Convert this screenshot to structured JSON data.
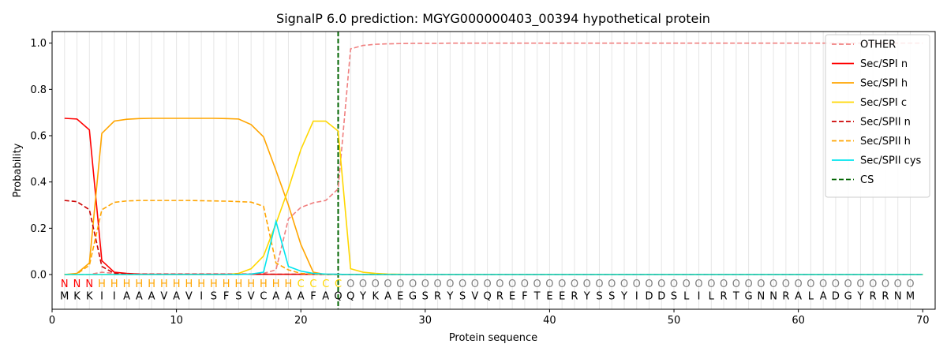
{
  "chart_data": {
    "type": "line",
    "title": "SignalP 6.0 prediction: MGYG000000403_00394 hypothetical protein",
    "xlabel": "Protein sequence",
    "ylabel": "Probability",
    "xlim": [
      0,
      71
    ],
    "ylim": [
      -0.15,
      1.05
    ],
    "xticks": [
      0,
      10,
      20,
      30,
      40,
      50,
      60,
      70
    ],
    "yticks": [
      0.0,
      0.2,
      0.4,
      0.6,
      0.8,
      1.0
    ],
    "ytick_labels": [
      "0.0",
      "0.2",
      "0.4",
      "0.6",
      "0.8",
      "1.0"
    ],
    "grid": "vertical lines at each residue position",
    "legend_position": "top-right",
    "sequence": "MKKIIAAAVAVISFSVCAAAFAQQYKAEGSRYSVQREFTEERYSSYIDDSLILRTGNNRALADGYRRNM",
    "labels": "NNNHHHHHHHHHHHHHHHHCCCCOOOOOOOOOOOOOOOOOOOOOOOOOOOOOOOOOOOOOOOOOOOOOOO",
    "label_colors": {
      "N": "#ff0000",
      "H": "#ffa500",
      "C": "#ffd700",
      "O": "#808080"
    },
    "cleavage_site": 23,
    "series": [
      {
        "name": "OTHER",
        "color": "#f08080",
        "dash": true,
        "values": [
          0.0,
          0.0,
          0.0,
          0.01,
          0.005,
          0.003,
          0.003,
          0.003,
          0.003,
          0.003,
          0.003,
          0.003,
          0.003,
          0.003,
          0.003,
          0.003,
          0.005,
          0.02,
          0.24,
          0.29,
          0.31,
          0.32,
          0.37,
          0.975,
          0.99,
          0.995,
          0.997,
          0.998,
          0.999,
          0.999,
          0.999,
          1.0,
          1.0,
          1.0,
          1.0,
          1.0,
          1.0,
          1.0,
          1.0,
          1.0,
          1.0,
          1.0,
          1.0,
          1.0,
          1.0,
          1.0,
          1.0,
          1.0,
          1.0,
          1.0,
          1.0,
          1.0,
          1.0,
          1.0,
          1.0,
          1.0,
          1.0,
          1.0,
          1.0,
          1.0,
          1.0,
          1.0,
          1.0,
          1.0,
          1.0,
          1.0,
          1.0,
          1.0,
          1.0,
          1.0
        ]
      },
      {
        "name": "Sec/SPI n",
        "color": "#ff0000",
        "dash": false,
        "values": [
          0.675,
          0.672,
          0.625,
          0.06,
          0.01,
          0.005,
          0.002,
          0.001,
          0.001,
          0.001,
          0.001,
          0.001,
          0.001,
          0.001,
          0.001,
          0.001,
          0.001,
          0.001,
          0.001,
          0.001,
          0.001,
          0.001,
          0.001,
          0.0,
          0.0,
          0.0,
          0.0,
          0.0,
          0.0,
          0.0,
          0.0,
          0.0,
          0.0,
          0.0,
          0.0,
          0.0,
          0.0,
          0.0,
          0.0,
          0.0,
          0.0,
          0.0,
          0.0,
          0.0,
          0.0,
          0.0,
          0.0,
          0.0,
          0.0,
          0.0,
          0.0,
          0.0,
          0.0,
          0.0,
          0.0,
          0.0,
          0.0,
          0.0,
          0.0,
          0.0,
          0.0,
          0.0,
          0.0,
          0.0,
          0.0,
          0.0,
          0.0,
          0.0,
          0.0,
          0.0
        ]
      },
      {
        "name": "Sec/SPI h",
        "color": "#ffa500",
        "dash": false,
        "values": [
          0.0,
          0.005,
          0.05,
          0.61,
          0.663,
          0.671,
          0.674,
          0.675,
          0.675,
          0.675,
          0.675,
          0.675,
          0.675,
          0.674,
          0.672,
          0.648,
          0.595,
          0.45,
          0.3,
          0.13,
          0.01,
          0.0,
          0.0,
          0.0,
          0.0,
          0.0,
          0.0,
          0.0,
          0.0,
          0.0,
          0.0,
          0.0,
          0.0,
          0.0,
          0.0,
          0.0,
          0.0,
          0.0,
          0.0,
          0.0,
          0.0,
          0.0,
          0.0,
          0.0,
          0.0,
          0.0,
          0.0,
          0.0,
          0.0,
          0.0,
          0.0,
          0.0,
          0.0,
          0.0,
          0.0,
          0.0,
          0.0,
          0.0,
          0.0,
          0.0,
          0.0,
          0.0,
          0.0,
          0.0,
          0.0,
          0.0,
          0.0,
          0.0,
          0.0,
          0.0
        ]
      },
      {
        "name": "Sec/SPI c",
        "color": "#ffd700",
        "dash": false,
        "values": [
          0.0,
          0.0,
          0.0,
          0.0,
          0.0,
          0.0,
          0.0,
          0.0,
          0.0,
          0.0,
          0.0,
          0.0,
          0.0,
          0.0,
          0.005,
          0.025,
          0.08,
          0.22,
          0.37,
          0.54,
          0.663,
          0.663,
          0.62,
          0.025,
          0.01,
          0.005,
          0.002,
          0.001,
          0.0,
          0.0,
          0.0,
          0.0,
          0.0,
          0.0,
          0.0,
          0.0,
          0.0,
          0.0,
          0.0,
          0.0,
          0.0,
          0.0,
          0.0,
          0.0,
          0.0,
          0.0,
          0.0,
          0.0,
          0.0,
          0.0,
          0.0,
          0.0,
          0.0,
          0.0,
          0.0,
          0.0,
          0.0,
          0.0,
          0.0,
          0.0,
          0.0,
          0.0,
          0.0,
          0.0,
          0.0,
          0.0,
          0.0,
          0.0,
          0.0,
          0.0
        ]
      },
      {
        "name": "Sec/SPII n",
        "color": "#cc0000",
        "dash": true,
        "values": [
          0.32,
          0.315,
          0.28,
          0.035,
          0.005,
          0.002,
          0.001,
          0.001,
          0.001,
          0.001,
          0.001,
          0.001,
          0.001,
          0.001,
          0.001,
          0.001,
          0.001,
          0.001,
          0.001,
          0.001,
          0.001,
          0.0,
          0.0,
          0.0,
          0.0,
          0.0,
          0.0,
          0.0,
          0.0,
          0.0,
          0.0,
          0.0,
          0.0,
          0.0,
          0.0,
          0.0,
          0.0,
          0.0,
          0.0,
          0.0,
          0.0,
          0.0,
          0.0,
          0.0,
          0.0,
          0.0,
          0.0,
          0.0,
          0.0,
          0.0,
          0.0,
          0.0,
          0.0,
          0.0,
          0.0,
          0.0,
          0.0,
          0.0,
          0.0,
          0.0,
          0.0,
          0.0,
          0.0,
          0.0,
          0.0,
          0.0,
          0.0,
          0.0,
          0.0,
          0.0
        ]
      },
      {
        "name": "Sec/SPII h",
        "color": "#ffa500",
        "dash": true,
        "values": [
          0.0,
          0.003,
          0.04,
          0.28,
          0.312,
          0.318,
          0.32,
          0.32,
          0.32,
          0.32,
          0.32,
          0.319,
          0.318,
          0.317,
          0.315,
          0.313,
          0.295,
          0.05,
          0.02,
          0.005,
          0.002,
          0.001,
          0.0,
          0.0,
          0.0,
          0.0,
          0.0,
          0.0,
          0.0,
          0.0,
          0.0,
          0.0,
          0.0,
          0.0,
          0.0,
          0.0,
          0.0,
          0.0,
          0.0,
          0.0,
          0.0,
          0.0,
          0.0,
          0.0,
          0.0,
          0.0,
          0.0,
          0.0,
          0.0,
          0.0,
          0.0,
          0.0,
          0.0,
          0.0,
          0.0,
          0.0,
          0.0,
          0.0,
          0.0,
          0.0,
          0.0,
          0.0,
          0.0,
          0.0,
          0.0,
          0.0,
          0.0,
          0.0,
          0.0,
          0.0
        ]
      },
      {
        "name": "Sec/SPII cys",
        "color": "#00e5ee",
        "dash": false,
        "values": [
          0.0,
          0.0,
          0.0,
          0.0,
          0.0,
          0.0,
          0.0,
          0.0,
          0.0,
          0.0,
          0.0,
          0.0,
          0.0,
          0.0,
          0.0,
          0.002,
          0.01,
          0.23,
          0.035,
          0.015,
          0.005,
          0.002,
          0.001,
          0.0,
          0.0,
          0.0,
          0.0,
          0.0,
          0.0,
          0.0,
          0.0,
          0.0,
          0.0,
          0.0,
          0.0,
          0.0,
          0.0,
          0.0,
          0.0,
          0.0,
          0.0,
          0.0,
          0.0,
          0.0,
          0.0,
          0.0,
          0.0,
          0.0,
          0.0,
          0.0,
          0.0,
          0.0,
          0.0,
          0.0,
          0.0,
          0.0,
          0.0,
          0.0,
          0.0,
          0.0,
          0.0,
          0.0,
          0.0,
          0.0,
          0.0,
          0.0,
          0.0,
          0.0,
          0.0,
          0.0
        ]
      }
    ],
    "cs_legend": {
      "name": "CS",
      "color": "#006400",
      "dash": true
    }
  }
}
